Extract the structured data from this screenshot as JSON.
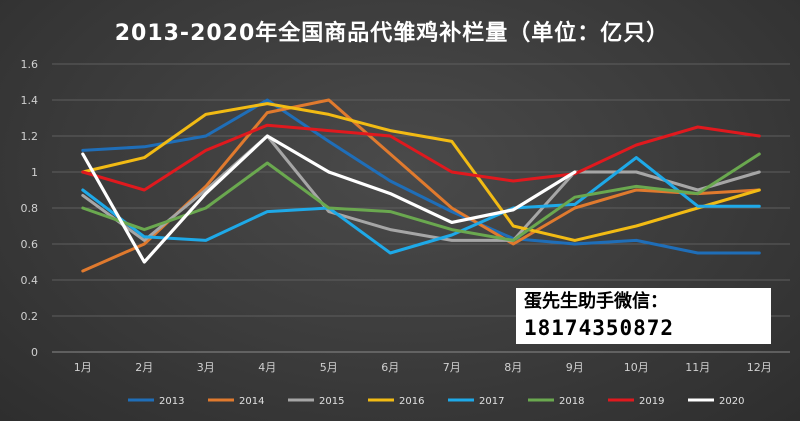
{
  "chart_data": {
    "type": "line",
    "title": "2013-2020年全国商品代雏鸡补栏量（单位：亿只）",
    "categories": [
      "1月",
      "2月",
      "3月",
      "4月",
      "5月",
      "6月",
      "7月",
      "8月",
      "9月",
      "10月",
      "11月",
      "12月"
    ],
    "yticks": [
      "0",
      "0.2",
      "0.4",
      "0.6",
      "0.8",
      "1",
      "1.2",
      "1.4",
      "1.6"
    ],
    "ylim": [
      0,
      1.6
    ],
    "grid": true,
    "legend_position": "bottom",
    "series": [
      {
        "name": "2013",
        "color": "#1f6eb8",
        "values": [
          1.12,
          1.14,
          1.2,
          1.4,
          1.17,
          0.95,
          0.78,
          0.63,
          0.6,
          0.62,
          0.55,
          0.55
        ]
      },
      {
        "name": "2014",
        "color": "#e07a2e",
        "values": [
          0.45,
          0.6,
          0.92,
          1.33,
          1.4,
          1.1,
          0.8,
          0.6,
          0.8,
          0.9,
          0.88,
          0.9
        ]
      },
      {
        "name": "2015",
        "color": "#a6a6a6",
        "values": [
          0.87,
          0.62,
          0.9,
          1.2,
          0.78,
          0.68,
          0.62,
          0.62,
          1.0,
          1.0,
          0.9,
          1.0
        ]
      },
      {
        "name": "2016",
        "color": "#f2bb14",
        "values": [
          1.0,
          1.08,
          1.32,
          1.38,
          1.32,
          1.23,
          1.17,
          0.7,
          0.62,
          0.7,
          0.8,
          0.9
        ]
      },
      {
        "name": "2017",
        "color": "#1ea9e8",
        "values": [
          0.9,
          0.64,
          0.62,
          0.78,
          0.8,
          0.55,
          0.65,
          0.8,
          0.82,
          1.08,
          0.81,
          0.81
        ]
      },
      {
        "name": "2018",
        "color": "#6aa84f",
        "values": [
          0.8,
          0.68,
          0.8,
          1.05,
          0.8,
          0.78,
          0.68,
          0.62,
          0.86,
          0.92,
          0.88,
          1.1
        ]
      },
      {
        "name": "2019",
        "color": "#e0191e",
        "values": [
          1.0,
          0.9,
          1.12,
          1.26,
          1.23,
          1.2,
          1.0,
          0.95,
          0.99,
          1.15,
          1.25,
          1.2
        ]
      },
      {
        "name": "2020",
        "color": "#ffffff",
        "values": [
          1.1,
          0.5,
          0.88,
          1.2,
          1.0,
          0.88,
          0.72,
          0.79,
          1.0,
          null,
          null,
          null
        ]
      }
    ]
  },
  "watermark": {
    "line1": "蛋先生助手微信：",
    "line2": "18174350872"
  }
}
